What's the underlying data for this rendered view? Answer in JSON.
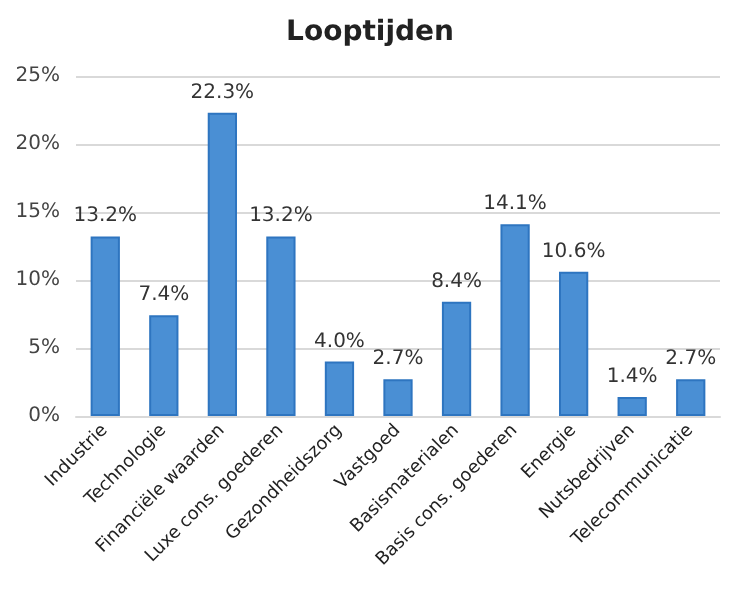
{
  "chart_data": {
    "type": "bar",
    "title": "Looptijden",
    "categories": [
      "Industrie",
      "Technologie",
      "Financiële waarden",
      "Luxe cons. goederen",
      "Gezondheidszorg",
      "Vastgoed",
      "Basismaterialen",
      "Basis cons. goederen",
      "Energie",
      "Nutsbedrijven",
      "Telecommunicatie"
    ],
    "values": [
      13.2,
      7.4,
      22.3,
      13.2,
      4.0,
      2.7,
      8.4,
      14.1,
      10.6,
      1.4,
      2.7
    ],
    "value_labels": [
      "13.2%",
      "7.4%",
      "22.3%",
      "13.2%",
      "4.0%",
      "2.7%",
      "8.4%",
      "14.1%",
      "10.6%",
      "1.4%",
      "2.7%"
    ],
    "color": "#4a8fd4",
    "ylim": [
      0,
      25
    ],
    "yticks": [
      {
        "value": 0,
        "label": "0%"
      },
      {
        "value": 5,
        "label": "5%"
      },
      {
        "value": 10,
        "label": "10%"
      },
      {
        "value": 15,
        "label": "15%"
      },
      {
        "value": 20,
        "label": "20%"
      },
      {
        "value": 25,
        "label": "25%"
      }
    ],
    "grid": "y"
  }
}
